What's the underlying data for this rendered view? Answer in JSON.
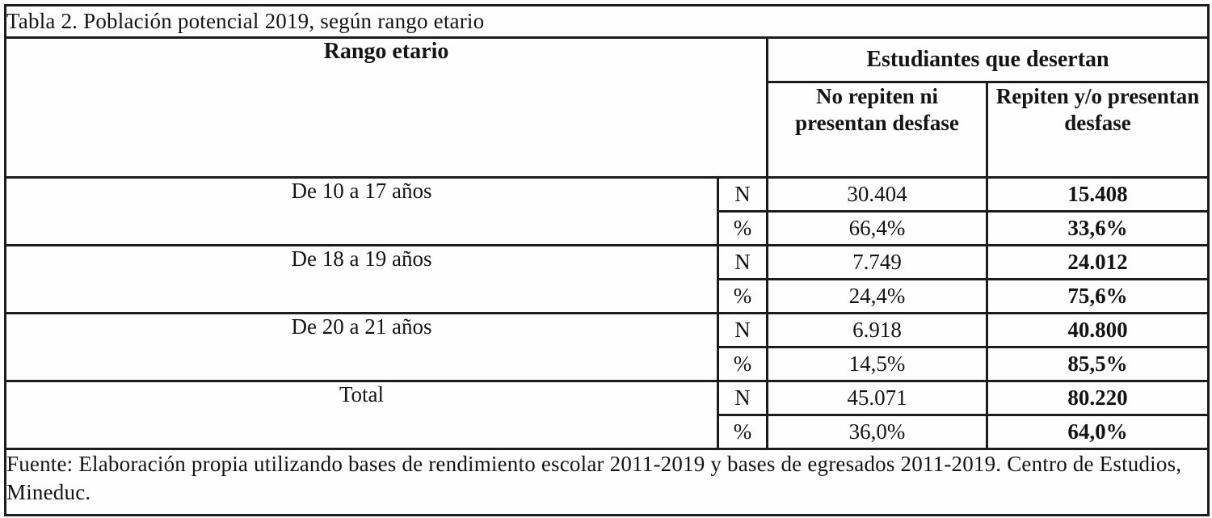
{
  "title": "Tabla 2. Población potencial 2019, según rango etario",
  "header": {
    "rango_etario": "Rango etario",
    "desertan": "Estudiantes que desertan",
    "no_repiten": "No repiten ni presentan desfase",
    "repiten": "Repiten y/o presentan desfase"
  },
  "metric_labels": {
    "n": "N",
    "pct": "%"
  },
  "rows": [
    {
      "label": "De 10 a 17 años",
      "n_no_repiten": "30.404",
      "n_repiten": "15.408",
      "pct_no_repiten": "66,4%",
      "pct_repiten": "33,6%"
    },
    {
      "label": "De 18 a 19 años",
      "n_no_repiten": "7.749",
      "n_repiten": "24.012",
      "pct_no_repiten": "24,4%",
      "pct_repiten": "75,6%"
    },
    {
      "label": "De 20 a 21 años",
      "n_no_repiten": "6.918",
      "n_repiten": "40.800",
      "pct_no_repiten": "14,5%",
      "pct_repiten": "85,5%"
    },
    {
      "label": "Total",
      "n_no_repiten": "45.071",
      "n_repiten": "80.220",
      "pct_no_repiten": "36,0%",
      "pct_repiten": "64,0%"
    }
  ],
  "footer": "Fuente: Elaboración propia utilizando bases de rendimiento escolar 2011-2019 y bases de egresados 2011-2019. Centro de Estudios, Mineduc.",
  "colors": {
    "text": "#141414",
    "border": "#1c1c1c",
    "background": "#fefefe"
  }
}
